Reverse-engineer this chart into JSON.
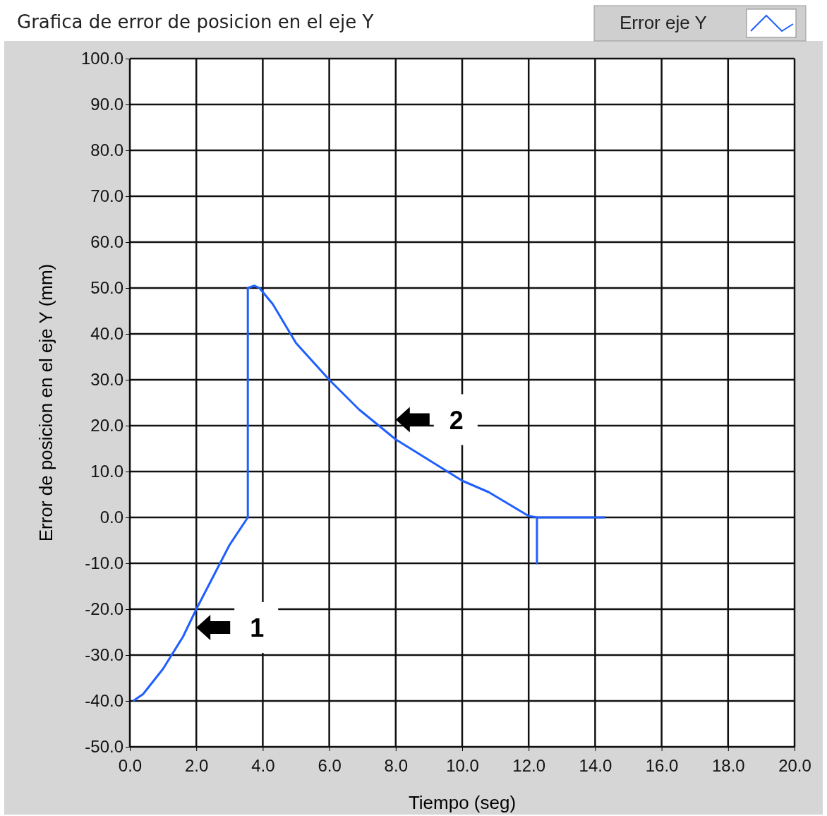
{
  "chart_data": {
    "type": "line",
    "title": "Grafica de error de posicion en el eje Y",
    "xlabel": "Tiempo (seg)",
    "ylabel": "Error de posicion en el eje Y (mm)",
    "series": [
      {
        "name": "Error eje Y",
        "color": "#1f5fff",
        "x": [
          0.1,
          0.4,
          1.0,
          1.6,
          2.0,
          2.5,
          3.0,
          3.55,
          3.55,
          3.75,
          3.9,
          4.3,
          5.0,
          6.0,
          6.9,
          8.0,
          9.0,
          10.0,
          10.8,
          12.0,
          12.25,
          12.25,
          12.25,
          14.3
        ],
        "values": [
          -40,
          -38.5,
          -33,
          -26,
          -20,
          -13,
          -6,
          0,
          50,
          50.5,
          50,
          46.5,
          38,
          30,
          23.5,
          17,
          12.5,
          8,
          5.5,
          0.3,
          0,
          -10,
          0,
          0
        ]
      }
    ],
    "xlim": [
      0,
      20
    ],
    "xticks": [
      {
        "value": 0,
        "label": "0.0"
      },
      {
        "value": 2,
        "label": "2.0"
      },
      {
        "value": 4,
        "label": "4.0"
      },
      {
        "value": 6,
        "label": "6.0"
      },
      {
        "value": 8,
        "label": "8.0"
      },
      {
        "value": 10,
        "label": "10.0"
      },
      {
        "value": 12,
        "label": "12.0"
      },
      {
        "value": 14,
        "label": "14.0"
      },
      {
        "value": 16,
        "label": "16.0"
      },
      {
        "value": 18,
        "label": "18.0"
      },
      {
        "value": 20,
        "label": "20.0"
      }
    ],
    "ylim": [
      -50,
      100
    ],
    "yticks": [
      {
        "value": -50,
        "label": "-50.0"
      },
      {
        "value": -40,
        "label": "-40.0"
      },
      {
        "value": -30,
        "label": "-30.0"
      },
      {
        "value": -20,
        "label": "-20.0"
      },
      {
        "value": -10,
        "label": "-10.0"
      },
      {
        "value": 0,
        "label": "0.0"
      },
      {
        "value": 10,
        "label": "10.0"
      },
      {
        "value": 20,
        "label": "20.0"
      },
      {
        "value": 30,
        "label": "30.0"
      },
      {
        "value": 40,
        "label": "40.0"
      },
      {
        "value": 50,
        "label": "50.0"
      },
      {
        "value": 60,
        "label": "60.0"
      },
      {
        "value": 70,
        "label": "70.0"
      },
      {
        "value": 80,
        "label": "80.0"
      },
      {
        "value": 90,
        "label": "90.0"
      },
      {
        "value": 100,
        "label": "100.0"
      }
    ],
    "grid": true,
    "legend": "top right",
    "annotations": [
      {
        "text": "1",
        "x": 2.0,
        "y": -20
      },
      {
        "text": "2",
        "x": 8.0,
        "y": 17
      }
    ]
  }
}
